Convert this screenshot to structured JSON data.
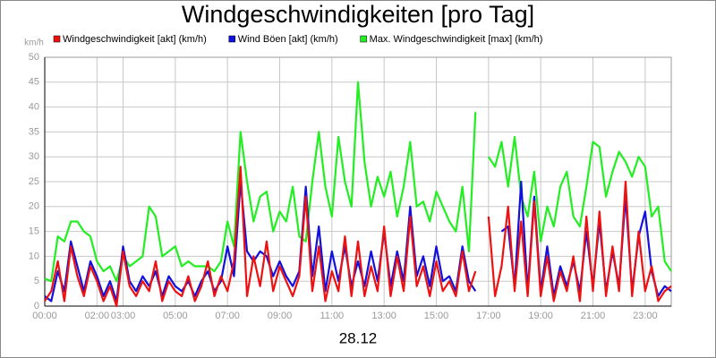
{
  "chart_data": {
    "type": "line",
    "title": "Windgeschwindigkeiten [pro Tag]",
    "unit_label": "km/h",
    "x_label": "28.12",
    "grid": true,
    "xlim": [
      0,
      24
    ],
    "ylim": [
      0,
      50
    ],
    "yticks": [
      0,
      5,
      10,
      15,
      20,
      25,
      30,
      35,
      40,
      45,
      50
    ],
    "xticks": [
      {
        "value": 0,
        "label": "00:00"
      },
      {
        "value": 2,
        "label": "02:00"
      },
      {
        "value": 3,
        "label": "03:00"
      },
      {
        "value": 5,
        "label": "05:00"
      },
      {
        "value": 7,
        "label": "07:00"
      },
      {
        "value": 9,
        "label": "09:00"
      },
      {
        "value": 11,
        "label": "11:00"
      },
      {
        "value": 13,
        "label": "13:00"
      },
      {
        "value": 15,
        "label": "15:00"
      },
      {
        "value": 17,
        "label": "17:00"
      },
      {
        "value": 19,
        "label": "19:00"
      },
      {
        "value": 21,
        "label": "21:00"
      },
      {
        "value": 23,
        "label": "23:00"
      }
    ],
    "x": [
      0,
      0.25,
      0.5,
      0.75,
      1,
      1.25,
      1.5,
      1.75,
      2,
      2.25,
      2.5,
      2.75,
      3,
      3.25,
      3.5,
      3.75,
      4,
      4.25,
      4.5,
      4.75,
      5,
      5.25,
      5.5,
      5.75,
      6,
      6.25,
      6.5,
      6.75,
      7,
      7.25,
      7.5,
      7.75,
      8,
      8.25,
      8.5,
      8.75,
      9,
      9.25,
      9.5,
      9.75,
      10,
      10.25,
      10.5,
      10.75,
      11,
      11.25,
      11.5,
      11.75,
      12,
      12.25,
      12.5,
      12.75,
      13,
      13.25,
      13.5,
      13.75,
      14,
      14.25,
      14.5,
      14.75,
      15,
      15.25,
      15.5,
      15.75,
      16,
      16.25,
      16.5,
      16.75,
      17,
      17.25,
      17.5,
      17.75,
      18,
      18.25,
      18.5,
      18.75,
      19,
      19.25,
      19.5,
      19.75,
      20,
      20.25,
      20.5,
      20.75,
      21,
      21.25,
      21.5,
      21.75,
      22,
      22.25,
      22.5,
      22.75,
      23,
      23.25,
      23.5,
      23.75,
      24
    ],
    "series": [
      {
        "name": "Windgeschwindigkeit [akt] (km/h)",
        "color": "#ee1111",
        "values": [
          1,
          3,
          9,
          1,
          12,
          6,
          2,
          8,
          5,
          1,
          4,
          0,
          11,
          4,
          2,
          5,
          3,
          9,
          1,
          5,
          3,
          2,
          6,
          1,
          4,
          9,
          2,
          6,
          3,
          9,
          28,
          2,
          10,
          4,
          13,
          3,
          8,
          5,
          2,
          6,
          22,
          3,
          12,
          1,
          7,
          3,
          14,
          2,
          13,
          2,
          8,
          3,
          16,
          2,
          10,
          3,
          18,
          4,
          8,
          2,
          9,
          3,
          5,
          2,
          11,
          3,
          7,
          null,
          18,
          2,
          8,
          20,
          3,
          17,
          2,
          21,
          2,
          10,
          1,
          7,
          3,
          10,
          1,
          18,
          3,
          19,
          2,
          12,
          3,
          25,
          2,
          15,
          3,
          8,
          1,
          3,
          4
        ]
      },
      {
        "name": "Wind Böen [akt] (km/h)",
        "color": "#1111dd",
        "values": [
          2,
          1,
          7,
          3,
          13,
          8,
          3,
          9,
          6,
          2,
          5,
          1,
          12,
          5,
          3,
          6,
          4,
          7,
          2,
          6,
          4,
          3,
          5,
          2,
          5,
          7,
          3,
          5,
          12,
          6,
          25,
          11,
          9,
          11,
          10,
          6,
          9,
          6,
          4,
          7,
          24,
          6,
          16,
          3,
          11,
          5,
          12,
          4,
          9,
          4,
          11,
          5,
          15,
          4,
          11,
          5,
          20,
          6,
          10,
          4,
          12,
          5,
          6,
          3,
          12,
          5,
          3,
          null,
          null,
          null,
          15,
          16,
          4,
          25,
          3,
          22,
          3,
          12,
          2,
          8,
          4,
          9,
          3,
          15,
          4,
          17,
          3,
          11,
          4,
          22,
          3,
          14,
          19,
          7,
          2,
          4,
          3
        ]
      },
      {
        "name": "Max. Windgeschwindigkeit [max] (km/h)",
        "color": "#22ee22",
        "values": [
          5.5,
          5,
          14,
          13,
          17,
          17,
          15,
          14,
          9,
          7,
          8,
          5,
          10,
          8,
          9,
          10,
          20,
          18,
          10,
          11,
          12,
          8,
          9,
          8,
          8,
          8,
          7,
          9,
          17,
          12,
          35,
          25,
          17,
          22,
          23,
          15,
          19,
          17,
          24,
          14,
          13,
          25,
          35,
          24,
          18,
          34,
          25,
          20,
          45,
          29,
          20,
          26,
          22,
          27,
          18,
          24,
          33,
          20,
          21,
          17,
          23,
          20,
          17,
          15,
          24,
          11,
          39,
          null,
          30,
          28,
          33,
          24,
          34,
          22,
          18,
          27,
          13,
          20,
          16,
          24,
          27,
          18,
          16,
          24,
          33,
          32,
          22,
          27,
          31,
          29,
          26,
          30,
          28,
          18,
          20,
          9,
          7
        ]
      }
    ]
  }
}
